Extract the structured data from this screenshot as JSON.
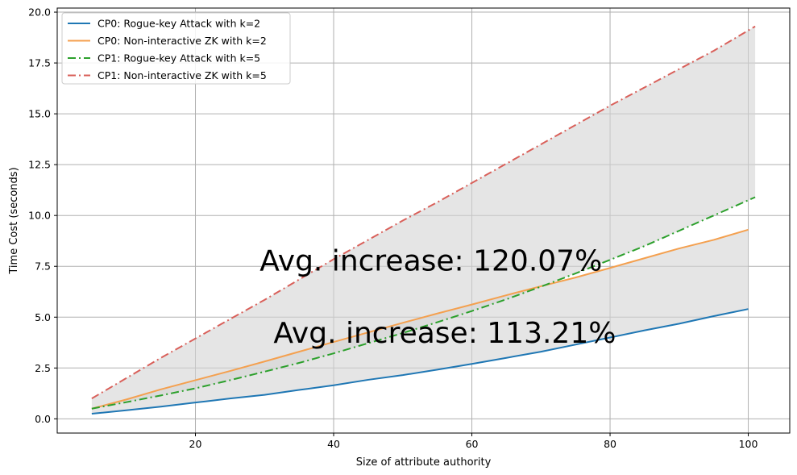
{
  "chart_data": {
    "type": "line",
    "xlabel": "Size of attribute authority",
    "ylabel": "Time Cost (seconds)",
    "xlim": [
      0,
      106
    ],
    "ylim": [
      -0.7,
      20.2
    ],
    "xticks": [
      20,
      40,
      60,
      80,
      100
    ],
    "yticks": [
      0.0,
      2.5,
      5.0,
      7.5,
      10.0,
      12.5,
      15.0,
      17.5,
      20.0
    ],
    "grid": true,
    "legend_position": "top-left",
    "series": [
      {
        "name": "CP0: Rogue-key Attack with k=2",
        "color": "#1f77b4",
        "style": "solid",
        "x": [
          5,
          10,
          15,
          20,
          25,
          30,
          35,
          40,
          45,
          50,
          55,
          60,
          65,
          70,
          75,
          80,
          85,
          90,
          95,
          100
        ],
        "y": [
          0.25,
          0.42,
          0.6,
          0.8,
          1.0,
          1.18,
          1.42,
          1.65,
          1.92,
          2.15,
          2.42,
          2.7,
          3.0,
          3.3,
          3.65,
          4.0,
          4.35,
          4.68,
          5.05,
          5.4
        ]
      },
      {
        "name": "CP0: Non-interactive ZK with k=2",
        "color": "#f4a04f",
        "style": "solid",
        "x": [
          5,
          10,
          15,
          20,
          25,
          30,
          35,
          40,
          45,
          50,
          55,
          60,
          65,
          70,
          75,
          80,
          85,
          90,
          95,
          100
        ],
        "y": [
          0.5,
          0.95,
          1.45,
          1.9,
          2.35,
          2.82,
          3.3,
          3.78,
          4.25,
          4.72,
          5.18,
          5.62,
          6.08,
          6.52,
          6.95,
          7.42,
          7.9,
          8.38,
          8.8,
          9.3
        ]
      },
      {
        "name": "CP1: Rogue-key Attack with k=5",
        "color": "#2ca02c",
        "style": "dashdot",
        "x": [
          5,
          10,
          15,
          20,
          25,
          30,
          35,
          40,
          45,
          50,
          55,
          60,
          65,
          70,
          75,
          80,
          85,
          90,
          95,
          101
        ],
        "y": [
          0.5,
          0.82,
          1.15,
          1.5,
          1.9,
          2.32,
          2.75,
          3.22,
          3.72,
          4.22,
          4.75,
          5.3,
          5.88,
          6.5,
          7.15,
          7.82,
          8.5,
          9.25,
          10.0,
          10.9
        ]
      },
      {
        "name": "CP1: Non-interactive ZK with k=5",
        "color": "#d9605a",
        "style": "dashdot",
        "x": [
          5,
          10,
          15,
          20,
          25,
          30,
          35,
          40,
          45,
          50,
          55,
          60,
          65,
          70,
          75,
          80,
          85,
          90,
          95,
          101
        ],
        "y": [
          1.0,
          2.0,
          3.0,
          3.95,
          4.9,
          5.85,
          6.85,
          7.85,
          8.8,
          9.75,
          10.65,
          11.6,
          12.55,
          13.5,
          14.45,
          15.4,
          16.3,
          17.2,
          18.1,
          19.3
        ]
      }
    ],
    "fills": [
      {
        "between": [
          0,
          1
        ],
        "color": "#d3d3d3",
        "opacity": 0.6
      },
      {
        "between": [
          2,
          3
        ],
        "color": "#d3d3d3",
        "opacity": 0.6
      }
    ],
    "annotations": [
      {
        "text": "Avg. increase: 120.07%",
        "x": 29.3,
        "y": 7.3
      },
      {
        "text": "Avg. increase: 113.21%",
        "x": 31.3,
        "y": 3.75
      }
    ]
  }
}
